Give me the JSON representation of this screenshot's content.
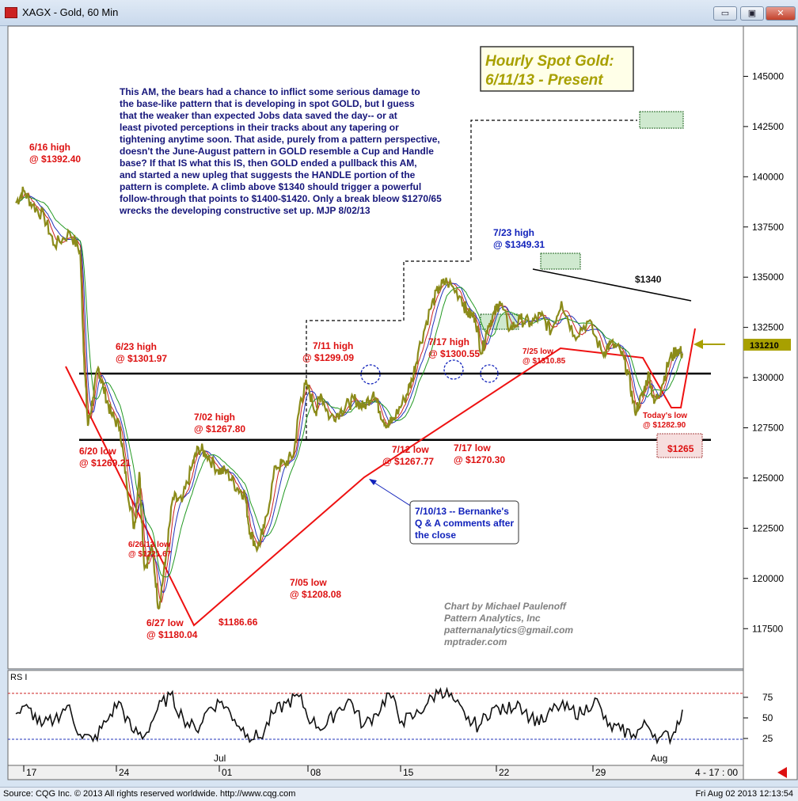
{
  "window": {
    "title": "XAGX - Gold, 60 Min",
    "minimize_label": "▭",
    "maximize_label": "▣",
    "close_label": "✕"
  },
  "status_bar": {
    "source": "Source: CQG Inc. © 2013 All rights reserved worldwide. http://www.cqg.com",
    "datetime": "Fri Aug 02 2013 12:13:54"
  },
  "colors": {
    "price": "#8b8b1a",
    "ma_red": "#cc2020",
    "ma_blue": "#2233bb",
    "ma_green": "#229922",
    "trend_red": "#ee1111",
    "annotation_red": "#dd1111",
    "annotation_blue": "#1122bb",
    "commentary": "#15157a",
    "title_gold": "#a8a000",
    "credit_gray": "#808080"
  },
  "chart_data": [
    {
      "type": "line",
      "title": "Hourly Spot Gold:",
      "subtitle": "6/11/13 - Present",
      "x_tick_labels": [
        "17",
        "24",
        "Jul",
        "01",
        "08",
        "15",
        "22",
        "29",
        "Aug",
        "4 - 17 : 00"
      ],
      "y_ticks": [
        117500,
        120000,
        122500,
        125000,
        127500,
        130000,
        132500,
        135000,
        137500,
        140000,
        142500,
        145000
      ],
      "y_tick_labels": [
        "117500",
        "120000",
        "122500",
        "125000",
        "127500",
        "130000",
        "132500",
        "135000",
        "137500",
        "140000",
        "142500",
        "145000"
      ],
      "ylim": [
        115500,
        147500
      ],
      "last_price_label": "131210",
      "last_price": 131210,
      "series": [
        {
          "key": "price",
          "x_days": [
            0,
            0.6,
            1.3,
            2.2,
            3,
            4.2,
            5,
            5.3,
            5.6,
            6,
            6.4,
            6.8,
            7.4,
            8.1,
            8.6,
            9.2,
            9.6,
            10,
            10.6,
            11.1,
            11.6,
            12.2,
            12.9,
            13.7,
            14.2,
            14.8,
            15.7,
            16.4,
            17.2,
            17.8,
            18.2,
            18.8,
            19.3,
            20.2,
            20.9,
            21.6,
            22.1,
            22.6,
            23.3,
            23.7,
            24.4,
            25.2,
            25.9,
            26.4,
            27,
            27.8,
            28.3,
            28.9,
            29.3,
            30.2,
            30.8,
            31.3,
            32.2,
            32.9,
            33.5,
            34.6,
            35.1,
            35.7,
            36.2,
            36.7,
            37.2,
            37.6,
            38.4,
            39.2,
            40,
            40.8,
            41.6,
            42.4,
            43.4,
            44.5,
            45.6,
            46.2,
            47,
            47.6,
            48.1,
            48.7,
            49.2,
            49.6,
            50.2,
            50.8,
            51.4,
            51.8
          ],
          "values": [
            138700,
            139300,
            138600,
            138000,
            136600,
            137200,
            136300,
            131000,
            127600,
            129000,
            130500,
            129500,
            128200,
            127500,
            124800,
            122500,
            125300,
            120500,
            121500,
            118500,
            120700,
            124000,
            123800,
            125600,
            126500,
            126200,
            125400,
            125300,
            124500,
            124200,
            122300,
            121500,
            122500,
            125600,
            125700,
            126200,
            128800,
            129700,
            128300,
            129200,
            128000,
            128300,
            128700,
            128900,
            128500,
            129300,
            128300,
            127600,
            127900,
            128900,
            129900,
            131400,
            133400,
            134500,
            134800,
            134000,
            133200,
            133000,
            131200,
            132600,
            133200,
            133800,
            132400,
            132900,
            132700,
            133100,
            132300,
            133800,
            132100,
            132800,
            131200,
            131700,
            131300,
            130200,
            128300,
            129100,
            130200,
            128700,
            129600,
            130900,
            131400,
            131210
          ]
        },
        {
          "key": "rsi",
          "x_days": [
            0,
            1,
            2,
            3,
            4,
            5,
            6,
            7,
            8,
            9,
            10,
            11,
            12,
            13,
            14,
            15,
            16,
            17,
            18,
            19,
            20,
            21,
            22,
            23,
            24,
            25,
            26,
            27,
            28,
            29,
            30,
            31,
            32,
            33,
            34,
            35,
            36,
            37,
            38,
            39,
            40,
            41,
            42,
            43,
            44,
            45,
            46,
            47,
            48,
            49,
            50,
            51,
            51.8
          ],
          "values": [
            55,
            62,
            40,
            48,
            65,
            30,
            22,
            45,
            70,
            35,
            28,
            60,
            78,
            50,
            35,
            62,
            70,
            48,
            30,
            26,
            55,
            68,
            76,
            45,
            38,
            60,
            72,
            40,
            55,
            80,
            46,
            52,
            68,
            85,
            72,
            48,
            40,
            62,
            58,
            70,
            50,
            45,
            64,
            60,
            55,
            74,
            40,
            35,
            30,
            42,
            26,
            28,
            60
          ]
        }
      ],
      "horizontal_lines": [
        {
          "y1": 130200,
          "y2": 130200
        },
        {
          "y1": 126900,
          "y2": 126900
        }
      ],
      "rsi_panel": {
        "label": "RS I",
        "ticks": [
          25,
          50,
          75
        ],
        "tick_labels": [
          "25",
          "50",
          "75"
        ],
        "overbought": 75,
        "oversold": 25
      },
      "annotations": {
        "a1": {
          "text": "6/16 high",
          "color": "red"
        },
        "a2": {
          "text": "@ $1392.40",
          "color": "red"
        },
        "a3": {
          "text": "6/23 high",
          "color": "red"
        },
        "a4": {
          "text": "@ $1301.97",
          "color": "red"
        },
        "a5": {
          "text": "6/20 low",
          "color": "red"
        },
        "a6": {
          "text": "@ $1269.21",
          "color": "red"
        },
        "a7": {
          "text": "7/02 high",
          "color": "red"
        },
        "a8": {
          "text": "@ $1267.80",
          "color": "red"
        },
        "a9": {
          "text": "6/26/13 low",
          "color": "red"
        },
        "a10": {
          "text": "@ $1221.67",
          "color": "red"
        },
        "a11": {
          "text": "6/27 low",
          "color": "red"
        },
        "a12": {
          "text": "@ $1180.04",
          "color": "red"
        },
        "a13": {
          "text": "$1186.66",
          "color": "red"
        },
        "a14": {
          "text": "7/05 low",
          "color": "red"
        },
        "a15": {
          "text": "@ $1208.08",
          "color": "red"
        },
        "a16": {
          "text": "7/11 high",
          "color": "red"
        },
        "a17": {
          "text": "@ $1299.09",
          "color": "red"
        },
        "a18": {
          "text": "7/17 high",
          "color": "red"
        },
        "a19": {
          "text": "@ $1300.55",
          "color": "red"
        },
        "a20": {
          "text": "7/12 low",
          "color": "red"
        },
        "a21": {
          "text": "@ $1267.77",
          "color": "red"
        },
        "a22": {
          "text": "7/17 low",
          "color": "red"
        },
        "a23": {
          "text": "@ $1270.30",
          "color": "red"
        },
        "a24": {
          "text": "7/23 high",
          "color": "blue"
        },
        "a25": {
          "text": "@ $1349.31",
          "color": "blue"
        },
        "a26": {
          "text": "7/25 low",
          "color": "red"
        },
        "a27": {
          "text": "@ $1310.85",
          "color": "red"
        },
        "a28": {
          "text": "$1340",
          "color": "black"
        },
        "a29": {
          "text": "Today's low",
          "color": "red"
        },
        "a30": {
          "text": "@ $1282.90",
          "color": "red"
        },
        "a31": {
          "text": "$1265",
          "color": "red"
        }
      },
      "callout": {
        "lines": [
          "7/10/13 -- Bernanke's",
          "Q & A comments after",
          "the close"
        ]
      },
      "commentary": [
        "This AM, the bears had a chance to inflict some serious damage to",
        "the base-like pattern that is developing in spot GOLD, but I guess",
        "that the weaker than expected Jobs data saved the day-- or at",
        "least pivoted perceptions in their tracks about any tapering or",
        "tightening anytime soon. That aside, purely from a pattern perspective,",
        "doesn't the June-August pattern in GOLD resemble a Cup and Handle",
        "base?  If that IS what this IS, then GOLD ended a pullback this AM,",
        "and started a new upleg that suggests the HANDLE portion of the",
        "pattern is complete. A climb above $1340 should trigger a powerful",
        "follow-through that points to $1400-$1420. Only a break bleow $1270/65",
        "wrecks the developing constructive set up.  MJP  8/02/13"
      ],
      "credits": [
        "Chart by Michael Paulenoff",
        "Pattern Analytics, Inc",
        "patternanalytics@gmail.com",
        "mptrader.com"
      ],
      "legend": "none",
      "grid": false
    }
  ]
}
